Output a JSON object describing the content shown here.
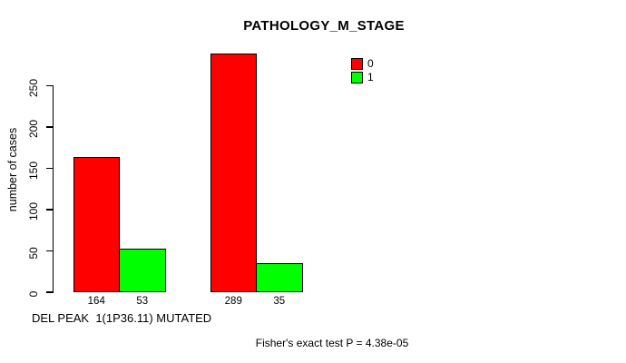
{
  "chart_data": {
    "type": "bar",
    "title": "PATHOLOGY_M_STAGE",
    "ylabel": "number of cases",
    "xlabel": "DEL PEAK  1(1P36.11) MUTATED",
    "annotation": "Fisher's exact test P = 4.38e-05",
    "categories": [
      "",
      ""
    ],
    "series": [
      {
        "name": "0",
        "color": "#ff0000",
        "values": [
          164,
          289
        ]
      },
      {
        "name": "1",
        "color": "#00ff00",
        "values": [
          53,
          35
        ]
      }
    ],
    "y_ticks": [
      0,
      50,
      100,
      150,
      200,
      250
    ],
    "ylim": [
      0,
      290
    ],
    "legend_position": "top-right",
    "grid": false,
    "background": "#ffffff",
    "text_color": "#000000"
  }
}
